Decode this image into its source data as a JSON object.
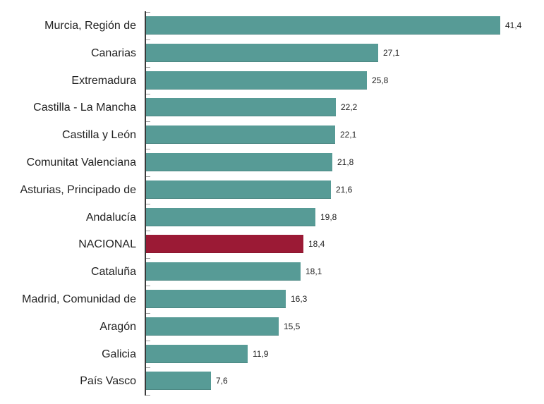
{
  "chart_data": {
    "type": "bar",
    "orientation": "horizontal",
    "title": "",
    "xlabel": "",
    "ylabel": "",
    "xlim": [
      0,
      45
    ],
    "grid": false,
    "legend": null,
    "decimal_separator": ",",
    "categories": [
      "Murcia, Región de",
      "Canarias",
      "Extremadura",
      "Castilla - La Mancha",
      "Castilla y León",
      "Comunitat Valenciana",
      "Asturias, Principado de",
      "Andalucía",
      "NACIONAL",
      "Cataluña",
      "Madrid, Comunidad de",
      "Aragón",
      "Galicia",
      "País Vasco"
    ],
    "values": [
      41.4,
      27.1,
      25.8,
      22.2,
      22.1,
      21.8,
      21.6,
      19.8,
      18.4,
      18.1,
      16.3,
      15.5,
      11.9,
      7.6
    ],
    "value_labels": [
      "41,4",
      "27,1",
      "25,8",
      "22,2",
      "22,1",
      "21,8",
      "21,6",
      "19,8",
      "18,4",
      "18,1",
      "16,3",
      "15,5",
      "11,9",
      "7,6"
    ],
    "highlight_category": "NACIONAL",
    "colors": {
      "default_bar": "#579b96",
      "highlight_bar": "#9b1a35",
      "axis": "#3a3a3a",
      "text": "#222222"
    }
  }
}
